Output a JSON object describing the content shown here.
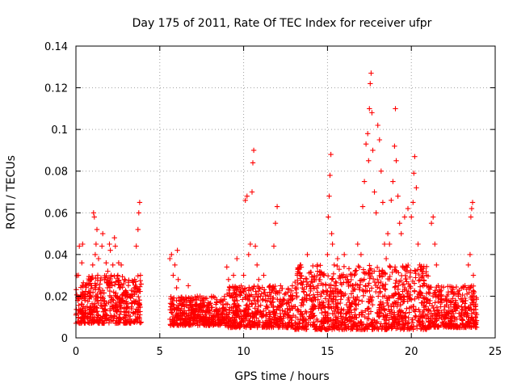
{
  "chart_data": {
    "type": "scatter",
    "title": "Day 175 of 2011, Rate Of TEC Index for receiver ufpr",
    "xlabel": "GPS time / hours",
    "ylabel": "ROTI / TECUs",
    "xlim": [
      0,
      25
    ],
    "ylim": [
      0,
      0.14
    ],
    "grid": true,
    "marker": "+",
    "marker_color": "#ff0000",
    "xticks": [
      0,
      5,
      10,
      15,
      20,
      25
    ],
    "xtick_labels": [
      "0",
      "5",
      "10",
      "15",
      "20",
      "25"
    ],
    "yticks": [
      0,
      0.02,
      0.04,
      0.06,
      0.08,
      0.1,
      0.12,
      0.14
    ],
    "ytick_labels": [
      "0",
      "0.02",
      "0.04",
      "0.06",
      "0.08",
      "0.1",
      "0.12",
      "0.14"
    ],
    "series": [
      {
        "name": "ROTI",
        "points": [
          [
            0.0,
            0.011
          ],
          [
            0.1,
            0.018
          ],
          [
            0.15,
            0.03
          ],
          [
            0.2,
            0.044
          ],
          [
            0.25,
            0.013
          ],
          [
            0.3,
            0.008
          ],
          [
            0.35,
            0.036
          ],
          [
            0.4,
            0.045
          ],
          [
            0.45,
            0.015
          ],
          [
            0.5,
            0.02
          ],
          [
            0.6,
            0.012
          ],
          [
            0.7,
            0.01
          ],
          [
            0.8,
            0.022
          ],
          [
            0.9,
            0.028
          ],
          [
            1.0,
            0.035
          ],
          [
            1.05,
            0.06
          ],
          [
            1.1,
            0.058
          ],
          [
            1.15,
            0.04
          ],
          [
            1.2,
            0.045
          ],
          [
            1.25,
            0.052
          ],
          [
            1.3,
            0.03
          ],
          [
            1.35,
            0.038
          ],
          [
            1.4,
            0.024
          ],
          [
            1.5,
            0.018
          ],
          [
            1.55,
            0.044
          ],
          [
            1.6,
            0.05
          ],
          [
            1.7,
            0.028
          ],
          [
            1.8,
            0.036
          ],
          [
            1.9,
            0.032
          ],
          [
            2.0,
            0.045
          ],
          [
            2.05,
            0.042
          ],
          [
            2.1,
            0.03
          ],
          [
            2.15,
            0.025
          ],
          [
            2.2,
            0.035
          ],
          [
            2.25,
            0.022
          ],
          [
            2.3,
            0.048
          ],
          [
            2.35,
            0.044
          ],
          [
            2.4,
            0.02
          ],
          [
            2.5,
            0.03
          ],
          [
            2.55,
            0.036
          ],
          [
            2.6,
            0.024
          ],
          [
            2.7,
            0.035
          ],
          [
            2.8,
            0.018
          ],
          [
            2.9,
            0.028
          ],
          [
            3.0,
            0.022
          ],
          [
            3.1,
            0.015
          ],
          [
            3.2,
            0.02
          ],
          [
            3.3,
            0.014
          ],
          [
            3.5,
            0.028
          ],
          [
            3.6,
            0.044
          ],
          [
            3.7,
            0.052
          ],
          [
            3.75,
            0.06
          ],
          [
            3.8,
            0.065
          ],
          [
            3.85,
            0.03
          ],
          [
            5.6,
            0.038
          ],
          [
            5.7,
            0.04
          ],
          [
            5.8,
            0.03
          ],
          [
            5.9,
            0.035
          ],
          [
            6.0,
            0.024
          ],
          [
            6.05,
            0.042
          ],
          [
            6.1,
            0.028
          ],
          [
            6.2,
            0.018
          ],
          [
            6.3,
            0.014
          ],
          [
            6.4,
            0.016
          ],
          [
            6.5,
            0.012
          ],
          [
            6.6,
            0.018
          ],
          [
            6.7,
            0.025
          ],
          [
            6.8,
            0.016
          ],
          [
            7.0,
            0.012
          ],
          [
            7.2,
            0.014
          ],
          [
            7.4,
            0.02
          ],
          [
            7.6,
            0.01
          ],
          [
            7.8,
            0.013
          ],
          [
            8.0,
            0.012
          ],
          [
            8.2,
            0.008
          ],
          [
            8.4,
            0.011
          ],
          [
            8.6,
            0.01
          ],
          [
            8.8,
            0.013
          ],
          [
            9.0,
            0.034
          ],
          [
            9.1,
            0.028
          ],
          [
            9.2,
            0.02
          ],
          [
            9.4,
            0.03
          ],
          [
            9.6,
            0.038
          ],
          [
            9.8,
            0.022
          ],
          [
            10.0,
            0.03
          ],
          [
            10.1,
            0.066
          ],
          [
            10.2,
            0.068
          ],
          [
            10.3,
            0.04
          ],
          [
            10.4,
            0.045
          ],
          [
            10.5,
            0.07
          ],
          [
            10.55,
            0.084
          ],
          [
            10.6,
            0.09
          ],
          [
            10.7,
            0.044
          ],
          [
            10.8,
            0.035
          ],
          [
            10.9,
            0.028
          ],
          [
            11.0,
            0.02
          ],
          [
            11.2,
            0.03
          ],
          [
            11.4,
            0.015
          ],
          [
            11.6,
            0.02
          ],
          [
            11.8,
            0.044
          ],
          [
            11.9,
            0.055
          ],
          [
            12.0,
            0.063
          ],
          [
            12.2,
            0.025
          ],
          [
            12.4,
            0.018
          ],
          [
            12.6,
            0.014
          ],
          [
            12.8,
            0.02
          ],
          [
            13.0,
            0.015
          ],
          [
            13.2,
            0.03
          ],
          [
            13.4,
            0.035
          ],
          [
            13.6,
            0.022
          ],
          [
            13.8,
            0.04
          ],
          [
            14.0,
            0.025
          ],
          [
            14.2,
            0.028
          ],
          [
            14.4,
            0.035
          ],
          [
            14.6,
            0.02
          ],
          [
            14.8,
            0.03
          ],
          [
            15.0,
            0.04
          ],
          [
            15.05,
            0.058
          ],
          [
            15.1,
            0.068
          ],
          [
            15.15,
            0.078
          ],
          [
            15.2,
            0.088
          ],
          [
            15.25,
            0.05
          ],
          [
            15.3,
            0.045
          ],
          [
            15.4,
            0.035
          ],
          [
            15.5,
            0.025
          ],
          [
            15.6,
            0.038
          ],
          [
            15.8,
            0.02
          ],
          [
            16.0,
            0.04
          ],
          [
            16.2,
            0.028
          ],
          [
            16.4,
            0.015
          ],
          [
            16.6,
            0.03
          ],
          [
            16.8,
            0.045
          ],
          [
            17.0,
            0.04
          ],
          [
            17.1,
            0.063
          ],
          [
            17.2,
            0.075
          ],
          [
            17.3,
            0.093
          ],
          [
            17.4,
            0.098
          ],
          [
            17.45,
            0.085
          ],
          [
            17.5,
            0.11
          ],
          [
            17.55,
            0.122
          ],
          [
            17.6,
            0.127
          ],
          [
            17.65,
            0.108
          ],
          [
            17.7,
            0.09
          ],
          [
            17.8,
            0.07
          ],
          [
            17.9,
            0.06
          ],
          [
            18.0,
            0.102
          ],
          [
            18.1,
            0.095
          ],
          [
            18.2,
            0.08
          ],
          [
            18.3,
            0.065
          ],
          [
            18.4,
            0.045
          ],
          [
            18.5,
            0.038
          ],
          [
            18.6,
            0.05
          ],
          [
            18.7,
            0.045
          ],
          [
            18.8,
            0.066
          ],
          [
            18.9,
            0.075
          ],
          [
            19.0,
            0.092
          ],
          [
            19.05,
            0.11
          ],
          [
            19.1,
            0.085
          ],
          [
            19.2,
            0.068
          ],
          [
            19.3,
            0.055
          ],
          [
            19.4,
            0.05
          ],
          [
            19.6,
            0.058
          ],
          [
            19.8,
            0.062
          ],
          [
            20.0,
            0.058
          ],
          [
            20.1,
            0.065
          ],
          [
            20.15,
            0.079
          ],
          [
            20.2,
            0.087
          ],
          [
            20.3,
            0.072
          ],
          [
            20.4,
            0.045
          ],
          [
            20.5,
            0.035
          ],
          [
            20.7,
            0.025
          ],
          [
            20.9,
            0.03
          ],
          [
            21.0,
            0.018
          ],
          [
            21.2,
            0.055
          ],
          [
            21.3,
            0.058
          ],
          [
            21.4,
            0.045
          ],
          [
            21.5,
            0.035
          ],
          [
            21.6,
            0.025
          ],
          [
            21.8,
            0.02
          ],
          [
            22.0,
            0.015
          ],
          [
            22.2,
            0.022
          ],
          [
            22.4,
            0.013
          ],
          [
            22.6,
            0.016
          ],
          [
            22.8,
            0.02
          ],
          [
            23.0,
            0.015
          ],
          [
            23.2,
            0.025
          ],
          [
            23.4,
            0.035
          ],
          [
            23.5,
            0.04
          ],
          [
            23.55,
            0.058
          ],
          [
            23.6,
            0.062
          ],
          [
            23.65,
            0.065
          ],
          [
            23.7,
            0.03
          ],
          [
            23.8,
            0.015
          ],
          [
            23.85,
            0.012
          ]
        ]
      }
    ],
    "dense_band": {
      "description": "dense cluster of low values",
      "segments": [
        {
          "x": [
            0.0,
            3.9
          ],
          "y": [
            0.007,
            0.03
          ]
        },
        {
          "x": [
            5.6,
            9.0
          ],
          "y": [
            0.006,
            0.02
          ]
        },
        {
          "x": [
            9.0,
            13.0
          ],
          "y": [
            0.005,
            0.025
          ]
        },
        {
          "x": [
            13.0,
            21.0
          ],
          "y": [
            0.004,
            0.035
          ]
        },
        {
          "x": [
            21.0,
            23.9
          ],
          "y": [
            0.005,
            0.025
          ]
        }
      ]
    }
  }
}
